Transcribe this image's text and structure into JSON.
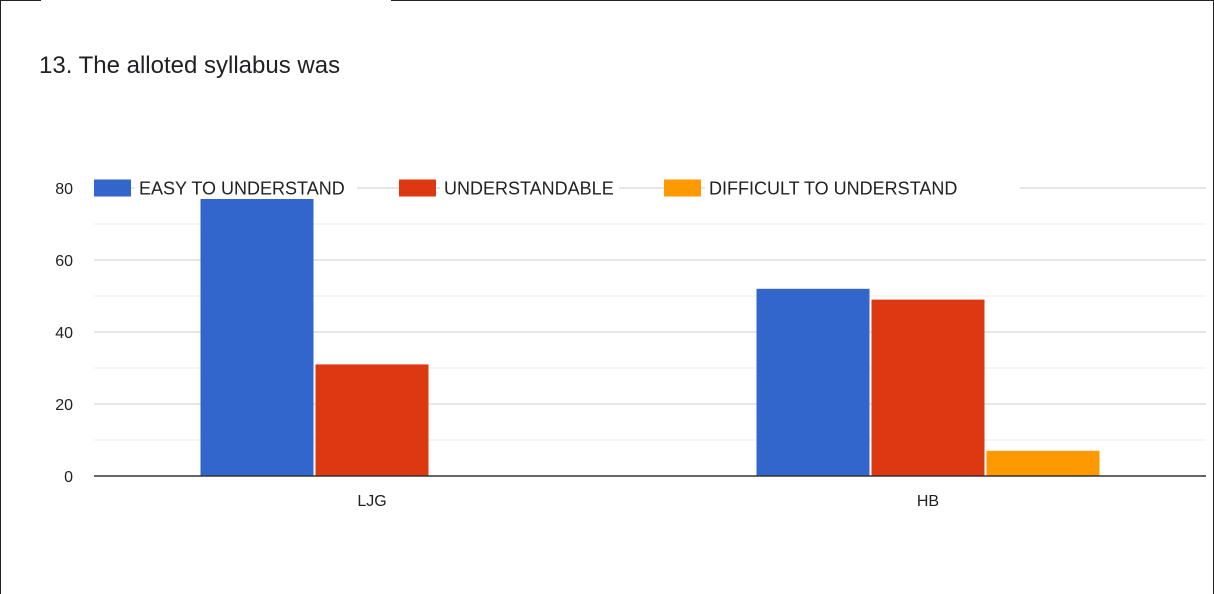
{
  "chart_data": {
    "type": "bar",
    "title": "13. The alloted syllabus was",
    "categories": [
      "LJG",
      "HB"
    ],
    "series": [
      {
        "name": "EASY TO UNDERSTAND",
        "color": "#3366cc",
        "values": [
          77,
          52
        ]
      },
      {
        "name": "UNDERSTANDABLE",
        "color": "#dc3912",
        "values": [
          31,
          49
        ]
      },
      {
        "name": "DIFFICULT TO UNDERSTAND",
        "color": "#ff9900",
        "values": [
          0,
          7
        ]
      }
    ],
    "yticks": [
      0,
      20,
      40,
      60,
      80
    ],
    "ylim": [
      0,
      80
    ],
    "grid": true,
    "legend": "top"
  }
}
